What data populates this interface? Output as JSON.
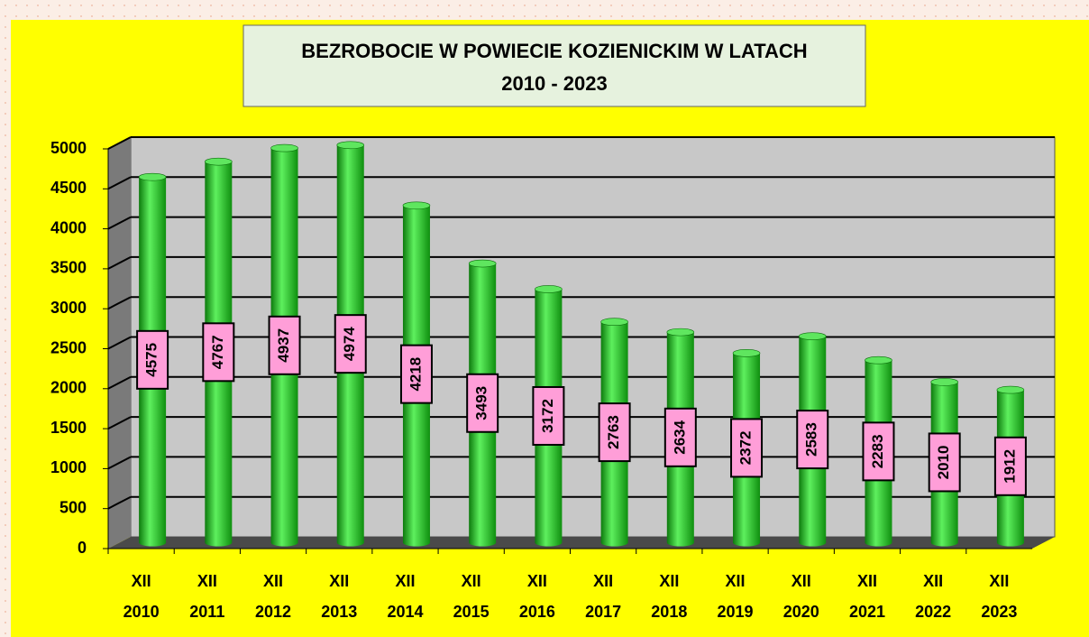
{
  "chart_data": {
    "type": "bar",
    "title": [
      "BEZROBOCIE W POWIECIE KOZIENICKIM W LATACH",
      "2010 - 2023"
    ],
    "categories": [
      [
        "XII",
        "2010"
      ],
      [
        "XII",
        "2011"
      ],
      [
        "XII",
        "2012"
      ],
      [
        "XII",
        "2013"
      ],
      [
        "XII",
        "2014"
      ],
      [
        "XII",
        "2015"
      ],
      [
        "XII",
        "2016"
      ],
      [
        "XII",
        "2017"
      ],
      [
        "XII",
        "2018"
      ],
      [
        "XII",
        "2019"
      ],
      [
        "XII",
        "2020"
      ],
      [
        "XII",
        "2021"
      ],
      [
        "XII",
        "2022"
      ],
      [
        "XII",
        "2023"
      ]
    ],
    "values": [
      4575,
      4767,
      4937,
      4974,
      4218,
      3493,
      3172,
      2763,
      2634,
      2372,
      2583,
      2283,
      2010,
      1912
    ],
    "color": "#22c322",
    "ylim": [
      0,
      5000
    ],
    "yticks": [
      0,
      500,
      1000,
      1500,
      2000,
      2500,
      3000,
      3500,
      4000,
      4500,
      5000
    ],
    "grid": true
  }
}
